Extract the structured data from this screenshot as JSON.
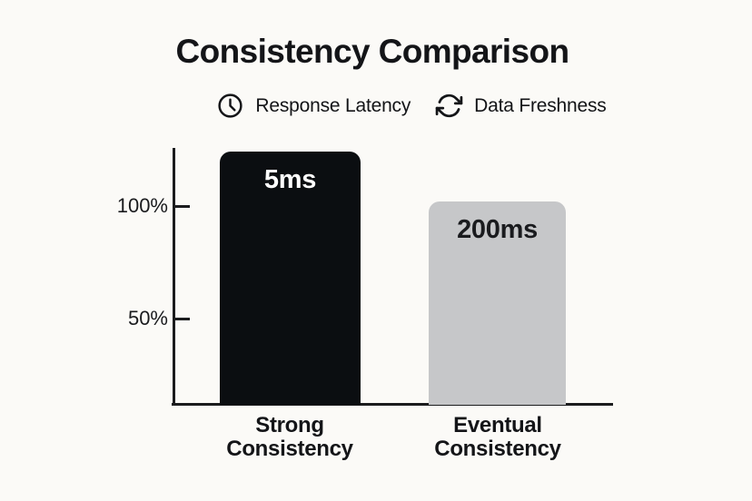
{
  "title": "Consistency Comparison",
  "chart_data": {
    "type": "bar",
    "title": "Consistency Comparison",
    "categories": [
      "Strong Consistency",
      "Eventual Consistency"
    ],
    "category_lines": [
      "Strong\nConsistency",
      "Eventual\nConsistency"
    ],
    "series": [
      {
        "name": "Response Latency",
        "values": [
          "5ms",
          "200ms"
        ]
      }
    ],
    "value_labels": [
      "5ms",
      "200ms"
    ],
    "bar_heights_pct": [
      124,
      102
    ],
    "ylim": [
      0,
      130
    ],
    "yticks": [
      50,
      100
    ],
    "ytick_labels": [
      "50%",
      "100%"
    ],
    "legend": [
      "Response Latency",
      "Data Freshness"
    ],
    "legend_icons": [
      "clock-icon",
      "sync-icon"
    ],
    "legend_position": "top",
    "grid": false,
    "xlabel": "",
    "ylabel": "",
    "bar_colors": [
      "#0b0e11",
      "#c6c7c9"
    ],
    "value_label_colors": [
      "#ffffff",
      "#1a1b1e"
    ]
  },
  "colors": {
    "background": "#fbfaf7",
    "axis": "#1b1c1e",
    "text": "#141518"
  }
}
